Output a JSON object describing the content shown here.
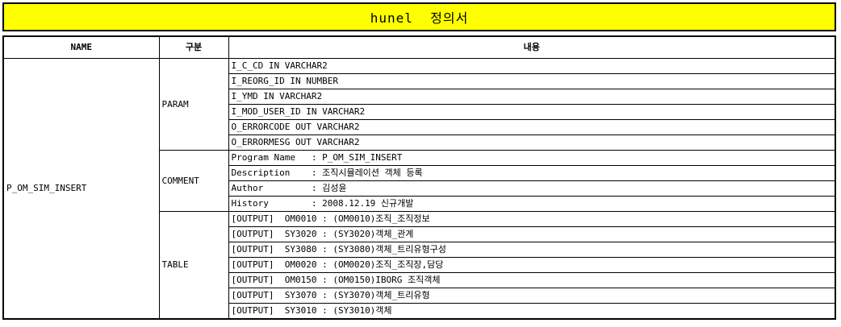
{
  "title": "hunel  정의서",
  "headers": {
    "name": "NAME",
    "category": "구분",
    "content": "내용"
  },
  "name_value": "P_OM_SIM_INSERT",
  "sections": {
    "param": {
      "label": "PARAM",
      "rows": [
        "I_C_CD IN VARCHAR2",
        "I_REORG_ID IN NUMBER",
        "I_YMD IN VARCHAR2",
        "I_MOD_USER_ID IN VARCHAR2",
        "O_ERRORCODE OUT VARCHAR2",
        "O_ERRORMESG OUT VARCHAR2"
      ]
    },
    "comment": {
      "label": "COMMENT",
      "rows": [
        "Program Name   : P_OM_SIM_INSERT",
        "Description    : 조직시뮬레이션 객체 등록",
        "Author         : 김성윤",
        "History        : 2008.12.19 신규개발"
      ]
    },
    "table": {
      "label": "TABLE",
      "rows": [
        "[OUTPUT]  OM0010 : (OM0010)조직_조직정보",
        "[OUTPUT]  SY3020 : (SY3020)객체_관계",
        "[OUTPUT]  SY3080 : (SY3080)객체_트리유형구성",
        "[OUTPUT]  OM0020 : (OM0020)조직_조직장,담당",
        "[OUTPUT]  OM0150 : (OM0150)IBORG 조직객체",
        "[OUTPUT]  SY3070 : (SY3070)객체_트리유형",
        "[OUTPUT]  SY3010 : (SY3010)객체"
      ]
    }
  }
}
